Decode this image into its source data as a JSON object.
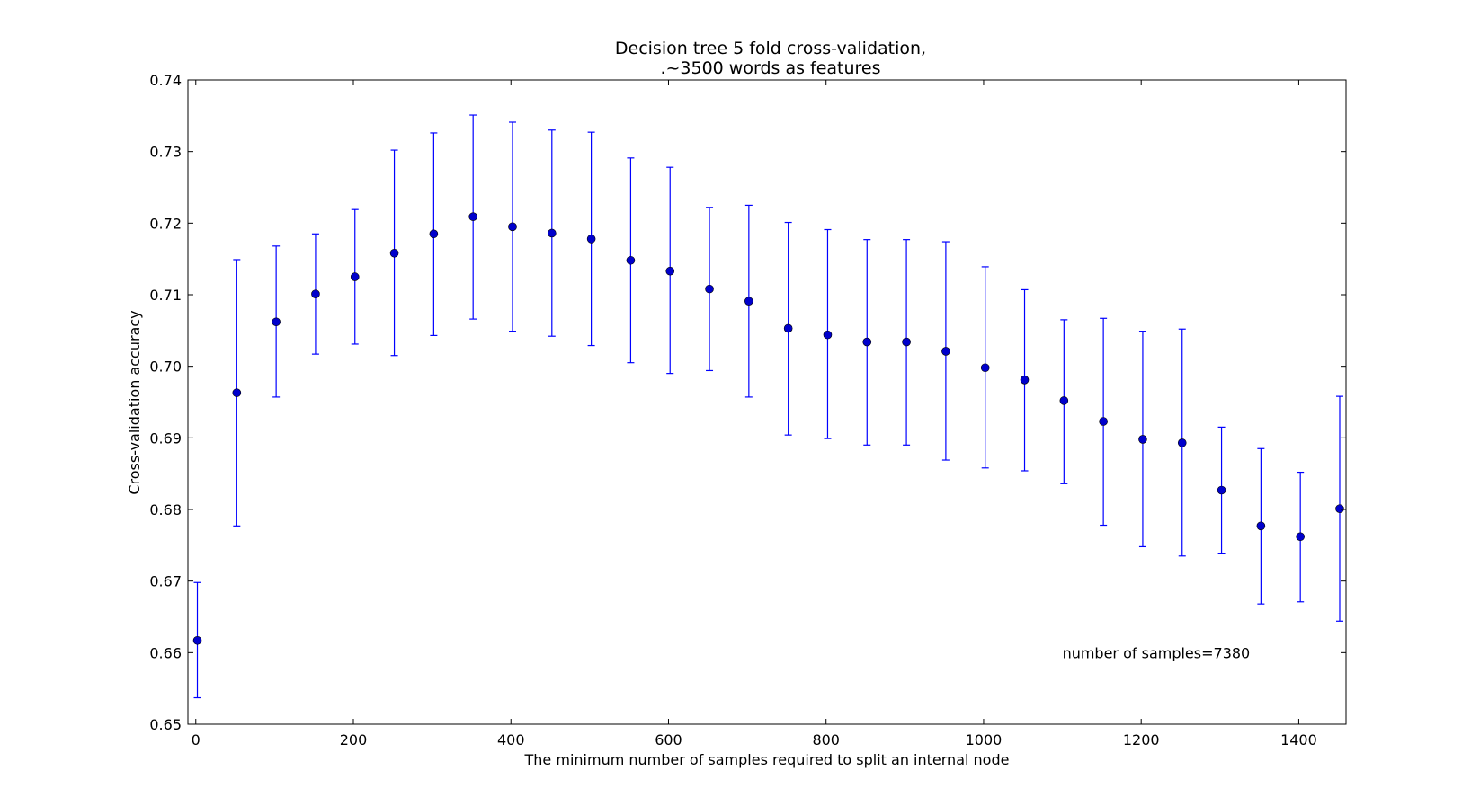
{
  "chart_data": {
    "type": "scatter",
    "title_line1": "Decision tree 5 fold cross-validation,",
    "title_line2": ".~3500 words as features",
    "xlabel": "The minimum number of samples required to split an internal node",
    "ylabel": "Cross-validation accuracy",
    "xlim": [
      -10,
      1460
    ],
    "ylim": [
      0.65,
      0.74
    ],
    "xticks": [
      0,
      200,
      400,
      600,
      800,
      1000,
      1200,
      1400
    ],
    "xtick_labels": [
      "0",
      "200",
      "400",
      "600",
      "800",
      "1000",
      "1200",
      "1400"
    ],
    "yticks": [
      0.65,
      0.66,
      0.67,
      0.68,
      0.69,
      0.7,
      0.71,
      0.72,
      0.73,
      0.74
    ],
    "ytick_labels": [
      "0.65",
      "0.66",
      "0.67",
      "0.68",
      "0.69",
      "0.70",
      "0.71",
      "0.72",
      "0.73",
      "0.74"
    ],
    "grid": false,
    "marker_color": "#0000cc",
    "errorbar_color": "#0000ff",
    "annotation": {
      "text": "number of samples=7380",
      "x": 1100,
      "y": 0.66
    },
    "x": [
      2,
      52,
      102,
      152,
      202,
      252,
      302,
      352,
      402,
      452,
      502,
      552,
      602,
      652,
      702,
      752,
      802,
      852,
      902,
      952,
      1002,
      1052,
      1102,
      1152,
      1202,
      1252,
      1302,
      1352,
      1402,
      1452
    ],
    "y": [
      0.6617,
      0.6963,
      0.7062,
      0.7101,
      0.7125,
      0.7158,
      0.7185,
      0.7209,
      0.7195,
      0.7186,
      0.7178,
      0.7148,
      0.7133,
      0.7108,
      0.7091,
      0.7053,
      0.7044,
      0.7034,
      0.7034,
      0.7021,
      0.6998,
      0.6981,
      0.6952,
      0.6923,
      0.6898,
      0.6893,
      0.6827,
      0.6777,
      0.6762,
      0.6801
    ],
    "y_lower": [
      0.6537,
      0.6777,
      0.6957,
      0.7017,
      0.7031,
      0.7015,
      0.7043,
      0.7066,
      0.7049,
      0.7042,
      0.7029,
      0.7005,
      0.699,
      0.6994,
      0.6957,
      0.6904,
      0.6899,
      0.689,
      0.689,
      0.6869,
      0.6858,
      0.6854,
      0.6836,
      0.6778,
      0.6748,
      0.6735,
      0.6738,
      0.6668,
      0.6671,
      0.6644
    ],
    "y_upper": [
      0.6698,
      0.7149,
      0.7168,
      0.7185,
      0.7219,
      0.7302,
      0.7326,
      0.7351,
      0.7341,
      0.733,
      0.7327,
      0.7291,
      0.7278,
      0.7222,
      0.7225,
      0.7201,
      0.7191,
      0.7177,
      0.7177,
      0.7174,
      0.7139,
      0.7107,
      0.7065,
      0.7067,
      0.7049,
      0.7052,
      0.6915,
      0.6885,
      0.6852,
      0.6958
    ]
  }
}
